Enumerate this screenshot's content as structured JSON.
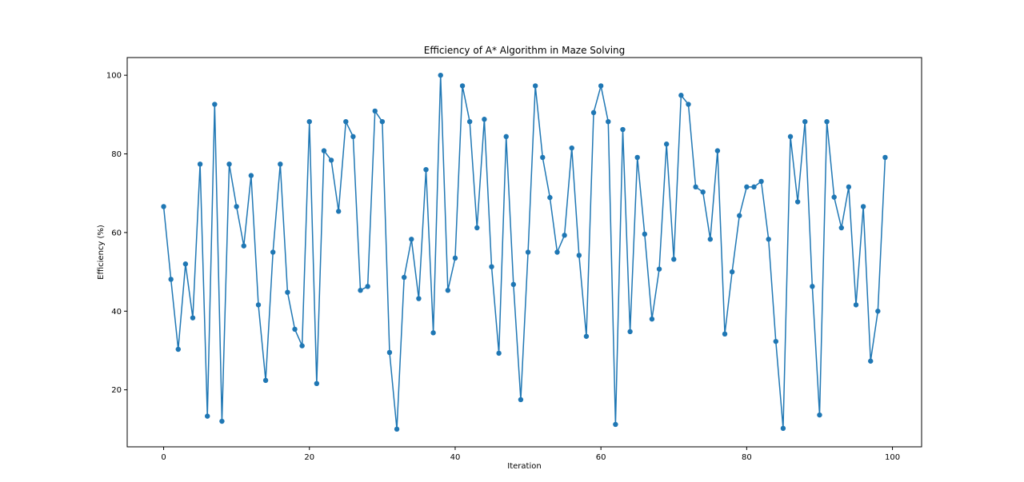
{
  "chart_data": {
    "type": "line",
    "title": "Efficiency of A* Algorithm in Maze Solving",
    "xlabel": "Iteration",
    "ylabel": "Efficiency (%)",
    "xlim": [
      -5,
      104
    ],
    "ylim": [
      5.5,
      104.5
    ],
    "xticks": [
      0,
      20,
      40,
      60,
      80,
      100
    ],
    "yticks": [
      20,
      40,
      60,
      80,
      100
    ],
    "grid": false,
    "line_color": "#1f77b4",
    "series": [
      {
        "x": [
          0,
          1,
          2,
          3,
          4,
          5,
          6,
          7,
          8,
          9,
          10,
          11,
          12,
          13,
          14,
          15,
          16,
          17,
          18,
          19,
          20,
          21,
          22,
          23,
          24,
          25,
          26,
          27,
          28,
          29,
          30,
          31,
          32,
          33,
          34,
          35,
          36,
          37,
          38,
          39,
          40,
          41,
          42,
          43,
          44,
          45,
          46,
          47,
          48,
          49,
          50,
          51,
          52,
          53,
          54,
          55,
          56,
          57,
          58,
          59,
          60,
          61,
          62,
          63,
          64,
          65,
          66,
          67,
          68,
          69,
          70,
          71,
          72,
          73,
          74,
          75,
          76,
          77,
          78,
          79,
          80,
          81,
          82,
          83,
          84,
          85,
          86,
          87,
          88,
          89,
          90,
          91,
          92,
          93,
          94,
          95,
          96,
          97,
          98,
          99
        ],
        "values": [
          66.6,
          48.1,
          30.3,
          52.0,
          38.3,
          77.4,
          13.3,
          92.6,
          12.0,
          77.4,
          66.6,
          56.6,
          74.5,
          41.6,
          22.4,
          55.0,
          77.4,
          44.8,
          35.4,
          31.2,
          88.2,
          21.6,
          80.8,
          78.4,
          65.4,
          88.2,
          84.4,
          45.3,
          46.3,
          90.9,
          88.2,
          29.5,
          10.0,
          48.6,
          58.3,
          43.2,
          76.0,
          34.5,
          100.0,
          45.3,
          53.5,
          97.3,
          88.2,
          61.2,
          88.8,
          51.3,
          29.3,
          84.4,
          46.8,
          17.5,
          55.0,
          97.3,
          79.1,
          68.9,
          55.0,
          59.3,
          81.5,
          54.2,
          33.6,
          90.5,
          97.3,
          88.2,
          11.2,
          86.2,
          34.8,
          79.1,
          59.6,
          38.0,
          50.7,
          82.5,
          53.2,
          94.9,
          92.6,
          71.6,
          70.3,
          58.3,
          80.8,
          34.2,
          50.0,
          64.3,
          71.6,
          71.6,
          73.0,
          58.3,
          32.3,
          10.2,
          84.4,
          67.8,
          88.2,
          46.3,
          13.6,
          88.2,
          69.0,
          61.2,
          71.6,
          41.6,
          66.6,
          27.3,
          40.0,
          79.1
        ]
      }
    ]
  }
}
